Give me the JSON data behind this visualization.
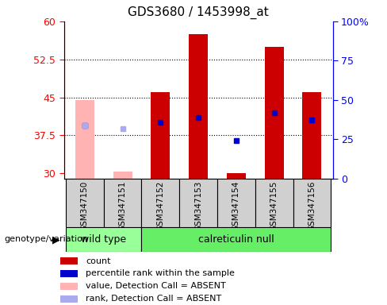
{
  "title": "GDS3680 / 1453998_at",
  "samples": [
    "GSM347150",
    "GSM347151",
    "GSM347152",
    "GSM347153",
    "GSM347154",
    "GSM347155",
    "GSM347156"
  ],
  "count_values": [
    44.5,
    30.3,
    46.0,
    57.5,
    30.1,
    55.0,
    46.0
  ],
  "rank_values": [
    39.5,
    null,
    40.0,
    41.0,
    36.5,
    42.0,
    40.5
  ],
  "absent_flags": [
    true,
    true,
    false,
    false,
    false,
    false,
    false
  ],
  "rank_absent_values": [
    39.5,
    38.8,
    null,
    null,
    null,
    null,
    null
  ],
  "ylim_left": [
    29,
    60
  ],
  "ylim_right": [
    0,
    100
  ],
  "yticks_left": [
    30,
    37.5,
    45,
    52.5,
    60
  ],
  "yticks_right": [
    0,
    25,
    50,
    75,
    100
  ],
  "ytick_labels_right": [
    "0",
    "25",
    "50",
    "75",
    "100%"
  ],
  "group_labels": [
    "wild type",
    "calreticulin null"
  ],
  "bar_color_present": "#cc0000",
  "bar_color_absent": "#ffb3b3",
  "rank_color_present": "#0000cc",
  "rank_color_absent": "#aaaaee",
  "bg_color_sample": "#d0d0d0",
  "group_color_wt": "#99ff99",
  "group_color_null": "#66ee66",
  "genotype_label": "genotype/variation",
  "legend_items": [
    {
      "label": "count",
      "color": "#cc0000"
    },
    {
      "label": "percentile rank within the sample",
      "color": "#0000cc"
    },
    {
      "label": "value, Detection Call = ABSENT",
      "color": "#ffb3b3"
    },
    {
      "label": "rank, Detection Call = ABSENT",
      "color": "#aaaaee"
    }
  ]
}
